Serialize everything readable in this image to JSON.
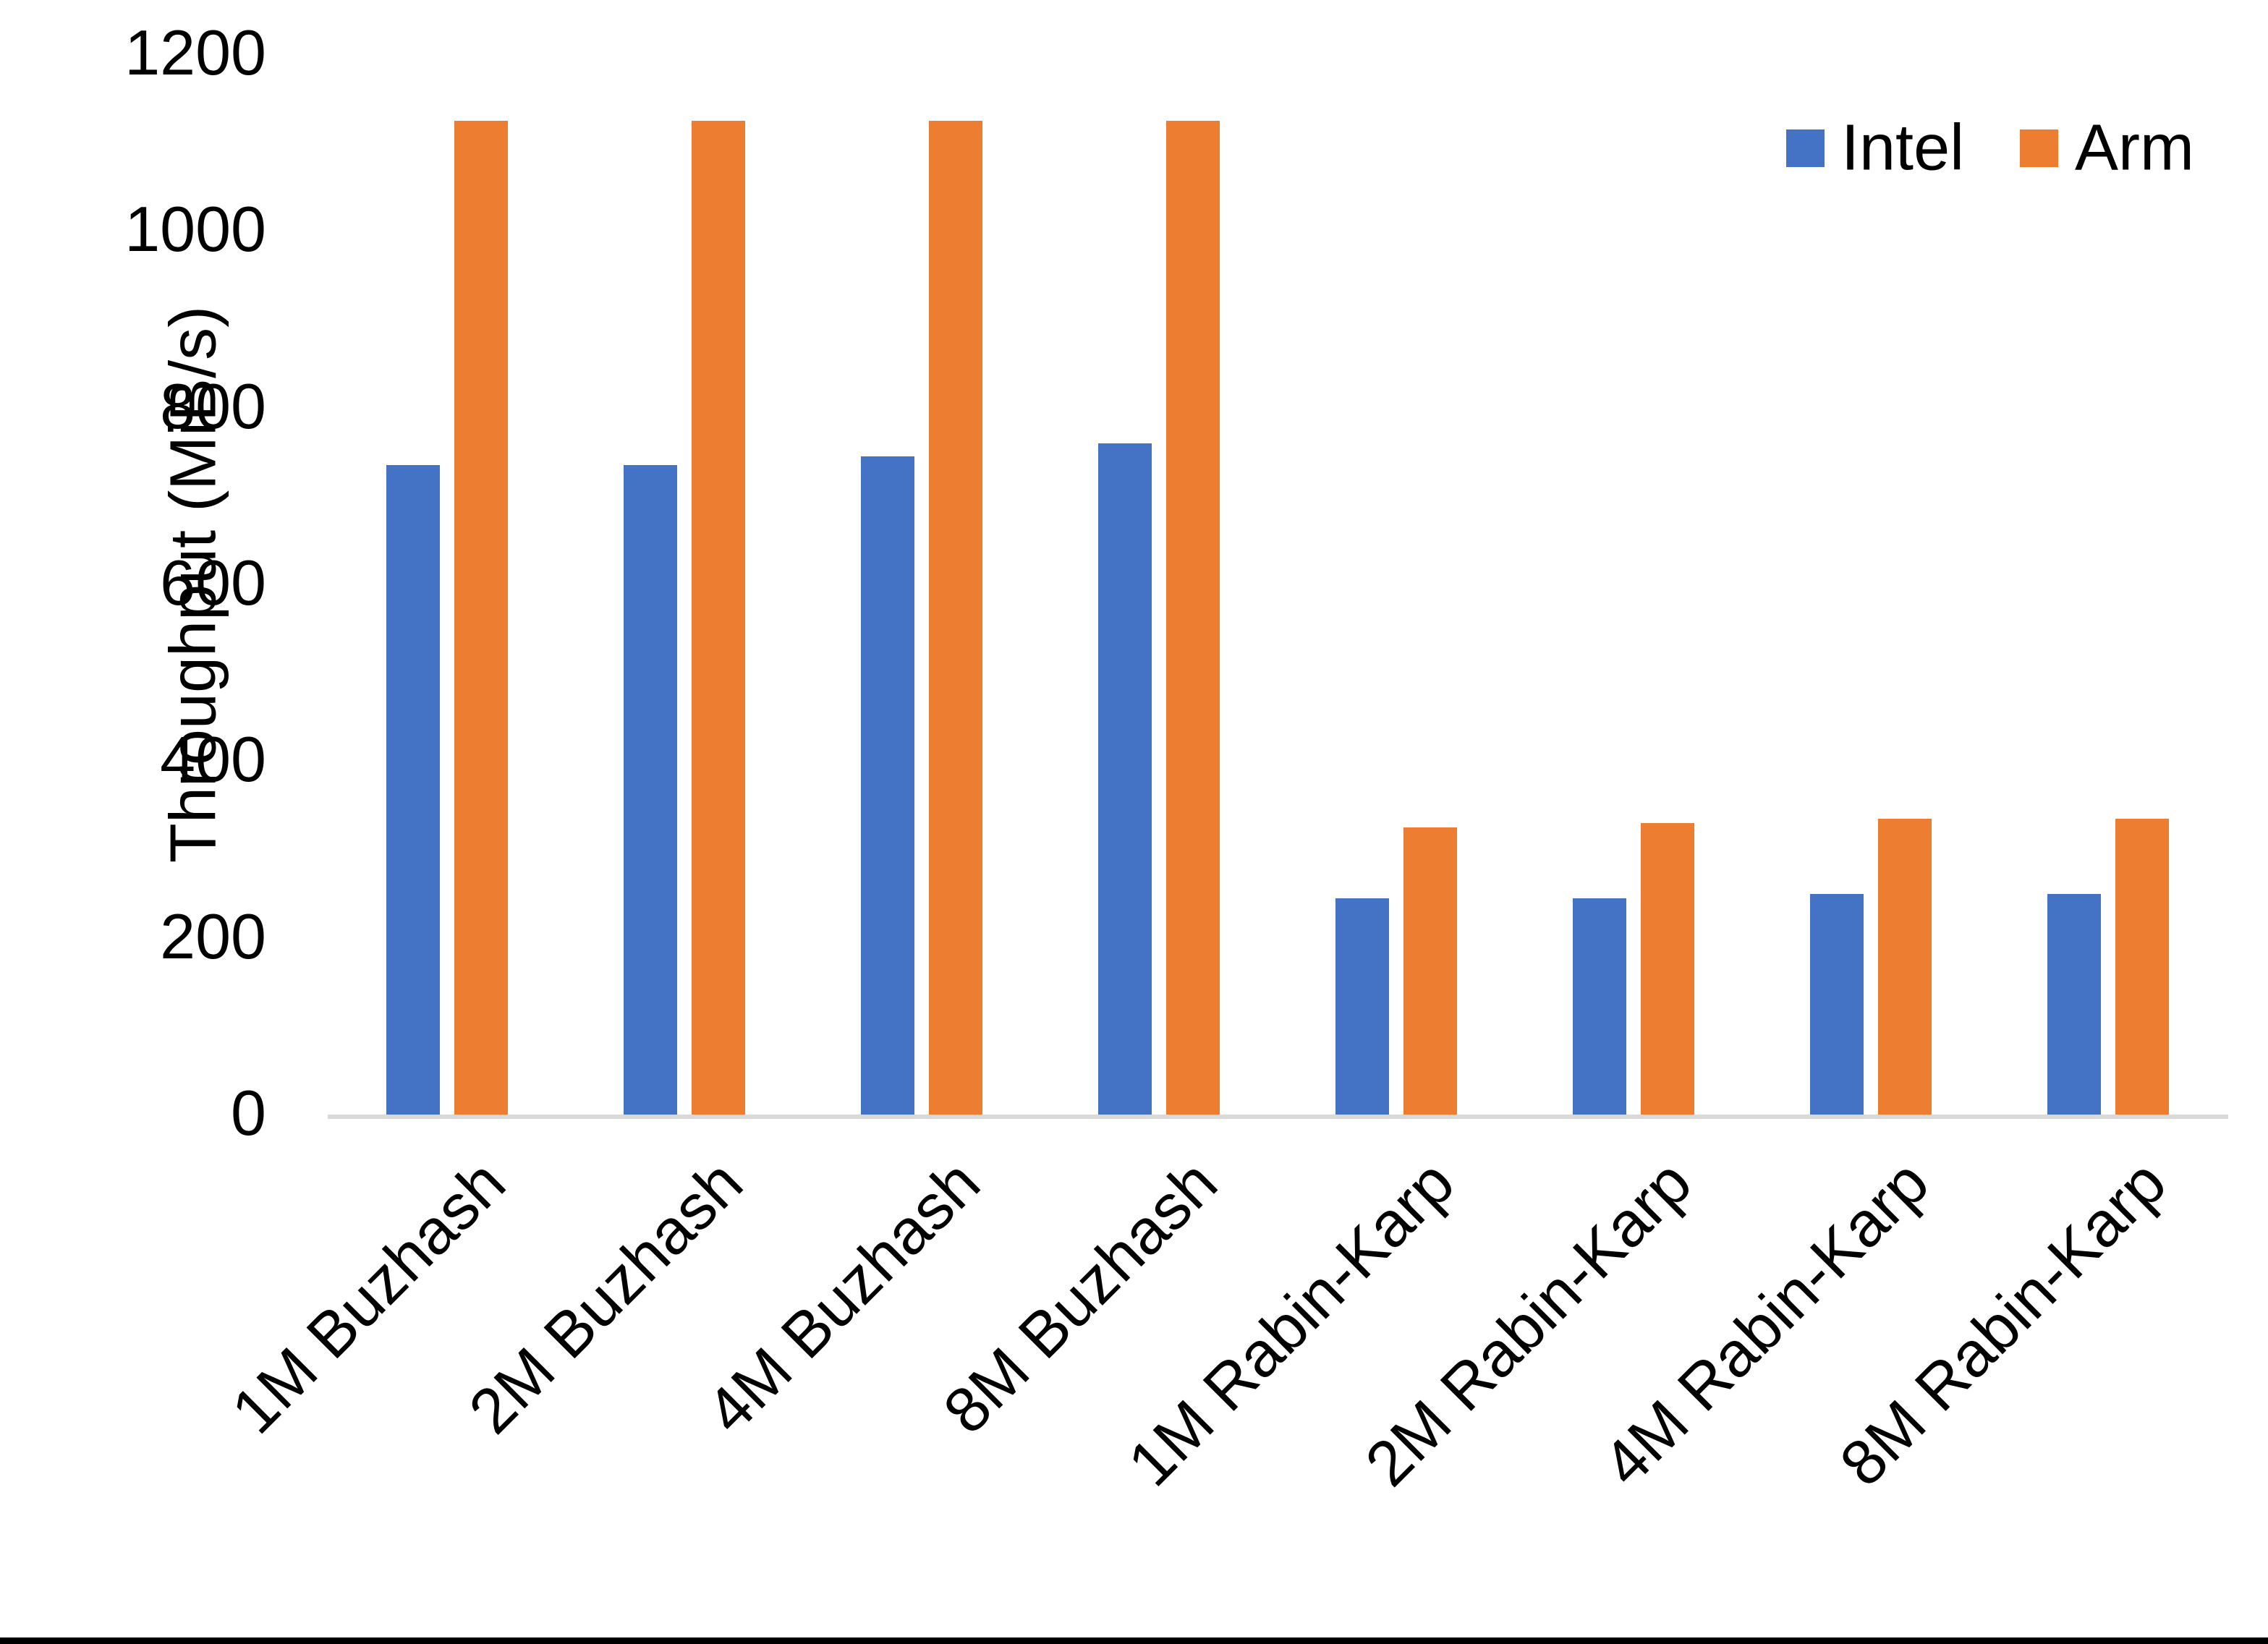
{
  "chart_data": {
    "type": "bar",
    "title": "",
    "categories": [
      "1M Buzhash",
      "2M Buzhash",
      "4M Buzhash",
      "8M Buzhash",
      "1M Rabin-Karp",
      "2M Rabin-Karp",
      "4M Rabin-Karp",
      "8M Rabin-Karp"
    ],
    "series": [
      {
        "name": "Intel",
        "color": "#4472C4",
        "values": [
          735,
          735,
          745,
          760,
          245,
          245,
          250,
          250
        ]
      },
      {
        "name": "Arm",
        "color": "#ED7D31",
        "values": [
          1125,
          1125,
          1125,
          1125,
          325,
          330,
          335,
          335
        ]
      }
    ],
    "xlabel": "",
    "ylabel": "Throughput (MiB/s)",
    "ylim": [
      0,
      1200
    ],
    "yticks": [
      0,
      200,
      400,
      600,
      800,
      1000,
      1200
    ],
    "grid": "off",
    "legend_position": "top-right"
  },
  "axis": {
    "baseline_color": "#D9D9D9",
    "text_color": "#000000"
  },
  "frame": {
    "bottom_bar_color": "#000000"
  }
}
